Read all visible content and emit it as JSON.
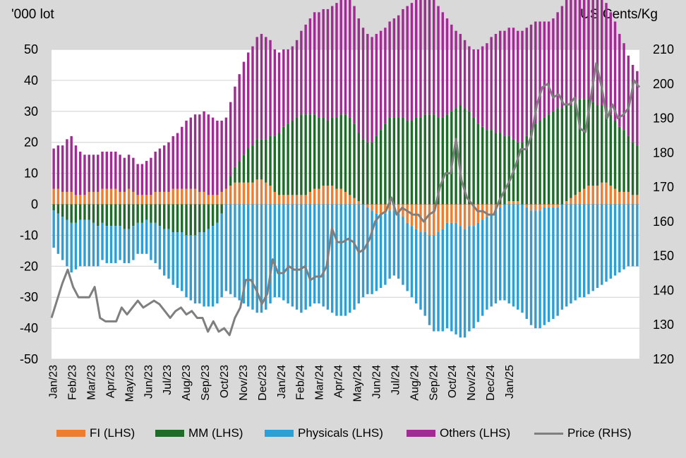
{
  "chart_data": {
    "type": "bar",
    "left_unit": "'000 lot",
    "right_unit": "US Cents/Kg",
    "x_tick_labels": [
      "Jan/23",
      "Feb/23",
      "Mar/23",
      "Apr/23",
      "May/23",
      "Jun/23",
      "Jul/23",
      "Aug/23",
      "Sep/23",
      "Oct/23",
      "Nov/23",
      "Dec/23",
      "Jan/24",
      "Feb/24",
      "Mar/24",
      "Apr/24",
      "May/24",
      "Jun/24",
      "Jul/24",
      "Aug/24",
      "Sep/24",
      "Oct/24",
      "Nov/24",
      "Dec/24",
      "Jan/25"
    ],
    "left_axis": {
      "min": -50,
      "max": 50,
      "step": 10,
      "ticks": [
        "50",
        "40",
        "30",
        "20",
        "10",
        "0",
        "-10",
        "-20",
        "-30",
        "-40",
        "-50"
      ]
    },
    "right_axis": {
      "min": 120,
      "max": 210,
      "step": 10,
      "ticks": [
        "210",
        "200",
        "190",
        "180",
        "170",
        "160",
        "150",
        "140",
        "130",
        "120"
      ]
    },
    "grid": true,
    "legend_position": "bottom",
    "legend": [
      {
        "key": "fi",
        "label": "FI (LHS)"
      },
      {
        "key": "mm",
        "label": "MM (LHS)"
      },
      {
        "key": "phys",
        "label": "Physicals (LHS)"
      },
      {
        "key": "oth",
        "label": "Others (LHS)"
      },
      {
        "key": "price",
        "label": "Price (RHS)"
      }
    ],
    "colors": {
      "fi": "#ed7d31",
      "mm": "#1e6b2a",
      "phys": "#2e9fd4",
      "oth": "#a02b93",
      "price": "#7f7f7f"
    },
    "weeks_per_month": 4.3,
    "series": {
      "fi": [
        5,
        5,
        4,
        4,
        4,
        3,
        3,
        3,
        4,
        4,
        4,
        5,
        5,
        5,
        5,
        4,
        4,
        5,
        4,
        3,
        3,
        3,
        3,
        4,
        4,
        4,
        4,
        5,
        5,
        5,
        5,
        5,
        5,
        4,
        4,
        3,
        3,
        3,
        4,
        5,
        6,
        7,
        7,
        7,
        7,
        7,
        8,
        8,
        7,
        6,
        4,
        3,
        3,
        3,
        3,
        3,
        3,
        3,
        4,
        5,
        5,
        6,
        6,
        6,
        5,
        5,
        4,
        3,
        2,
        1,
        0,
        -1,
        -2,
        -3,
        -3,
        -3,
        -2,
        -2,
        -3,
        -4,
        -6,
        -7,
        -8,
        -9,
        -9,
        -10,
        -10,
        -9,
        -8,
        -6,
        -6,
        -6,
        -7,
        -8,
        -7,
        -7,
        -6,
        -5,
        -4,
        -3,
        -2,
        -1,
        0,
        1,
        1,
        1,
        0,
        -1,
        -2,
        -2,
        -2,
        -1,
        -1,
        -1,
        -1,
        0,
        1,
        2,
        3,
        4,
        5,
        6,
        6,
        6,
        7,
        7,
        6,
        5,
        4,
        4,
        4,
        3,
        3
      ],
      "mm": [
        -2,
        -3,
        -4,
        -5,
        -6,
        -6,
        -5,
        -5,
        -5,
        -6,
        -7,
        -6,
        -7,
        -7,
        -7,
        -7,
        -8,
        -8,
        -7,
        -6,
        -6,
        -5,
        -6,
        -6,
        -7,
        -8,
        -8,
        -9,
        -9,
        -9,
        -10,
        -10,
        -10,
        -9,
        -9,
        -8,
        -7,
        -6,
        -3,
        0,
        3,
        5,
        7,
        9,
        11,
        12,
        13,
        13,
        14,
        16,
        18,
        20,
        22,
        23,
        24,
        25,
        26,
        26,
        25,
        24,
        23,
        22,
        21,
        22,
        23,
        24,
        25,
        25,
        24,
        22,
        21,
        20,
        20,
        22,
        24,
        26,
        28,
        28,
        28,
        28,
        27,
        27,
        28,
        28,
        29,
        29,
        29,
        28,
        28,
        29,
        30,
        31,
        32,
        31,
        30,
        28,
        26,
        25,
        24,
        24,
        23,
        23,
        22,
        21,
        20,
        19,
        20,
        22,
        24,
        26,
        27,
        28,
        29,
        30,
        31,
        31,
        31,
        30,
        30,
        30,
        29,
        28,
        27,
        26,
        25,
        24,
        23,
        22,
        21,
        20,
        18,
        17,
        16,
        15,
        15
      ],
      "phys": [
        -12,
        -13,
        -14,
        -15,
        -16,
        -15,
        -15,
        -15,
        -15,
        -14,
        -13,
        -12,
        -12,
        -12,
        -12,
        -11,
        -11,
        -11,
        -11,
        -10,
        -10,
        -11,
        -12,
        -13,
        -14,
        -15,
        -16,
        -17,
        -18,
        -19,
        -20,
        -21,
        -22,
        -23,
        -24,
        -25,
        -26,
        -26,
        -27,
        -28,
        -29,
        -30,
        -31,
        -32,
        -33,
        -34,
        -35,
        -35,
        -34,
        -32,
        -30,
        -30,
        -31,
        -32,
        -33,
        -34,
        -35,
        -34,
        -33,
        -32,
        -32,
        -33,
        -34,
        -35,
        -36,
        -36,
        -36,
        -35,
        -34,
        -32,
        -30,
        -28,
        -27,
        -25,
        -24,
        -23,
        -22,
        -21,
        -21,
        -22,
        -22,
        -23,
        -24,
        -25,
        -27,
        -29,
        -31,
        -32,
        -33,
        -34,
        -35,
        -36,
        -36,
        -35,
        -34,
        -33,
        -32,
        -31,
        -30,
        -30,
        -30,
        -30,
        -31,
        -32,
        -33,
        -34,
        -35,
        -36,
        -37,
        -38,
        -38,
        -38,
        -37,
        -36,
        -35,
        -34,
        -33,
        -32,
        -31,
        -30,
        -30,
        -29,
        -28,
        -27,
        -26,
        -25,
        -24,
        -23,
        -22,
        -21,
        -20,
        -20,
        -20
      ],
      "oth": [
        13,
        14,
        15,
        17,
        18,
        16,
        14,
        13,
        12,
        12,
        12,
        12,
        12,
        12,
        12,
        12,
        11,
        11,
        11,
        10,
        10,
        11,
        12,
        13,
        14,
        15,
        16,
        17,
        18,
        20,
        22,
        23,
        24,
        25,
        26,
        26,
        25,
        24,
        23,
        23,
        24,
        26,
        28,
        30,
        31,
        32,
        33,
        34,
        33,
        31,
        28,
        26,
        25,
        24,
        24,
        25,
        27,
        29,
        31,
        33,
        34,
        35,
        36,
        36,
        37,
        37,
        38,
        38,
        38,
        37,
        36,
        35,
        34,
        33,
        32,
        31,
        31,
        32,
        33,
        35,
        37,
        38,
        39,
        40,
        40,
        39,
        38,
        36,
        34,
        31,
        28,
        25,
        23,
        22,
        21,
        22,
        24,
        26,
        28,
        30,
        32,
        33,
        34,
        35,
        36,
        36,
        36,
        35,
        34,
        33,
        32,
        31,
        30,
        30,
        31,
        33,
        36,
        39,
        41,
        42,
        42,
        41,
        39,
        37,
        35,
        34,
        33,
        32,
        30,
        28,
        26,
        25,
        24,
        24,
        24
      ],
      "price": [
        132,
        137,
        142,
        146,
        141,
        138,
        138,
        138,
        141,
        132,
        131,
        131,
        131,
        135,
        133,
        135,
        137,
        135,
        136,
        137,
        136,
        134,
        132,
        134,
        135,
        133,
        134,
        132,
        132,
        128,
        131,
        128,
        129,
        127,
        132,
        135,
        143,
        143,
        140,
        136,
        139,
        149,
        145,
        145,
        147,
        146,
        146,
        147,
        143,
        144,
        144,
        147,
        158,
        154,
        154,
        155,
        154,
        151,
        152,
        155,
        160,
        162,
        163,
        167,
        162,
        164,
        163,
        162,
        162,
        160,
        162,
        163,
        170,
        174,
        174,
        184,
        172,
        167,
        165,
        163,
        163,
        162,
        162,
        166,
        169,
        172,
        176,
        181,
        181,
        185,
        194,
        199,
        200,
        196,
        197,
        194,
        194,
        196,
        187,
        186,
        196,
        206,
        199,
        190,
        194,
        190,
        191,
        193,
        201,
        199
      ]
    }
  }
}
